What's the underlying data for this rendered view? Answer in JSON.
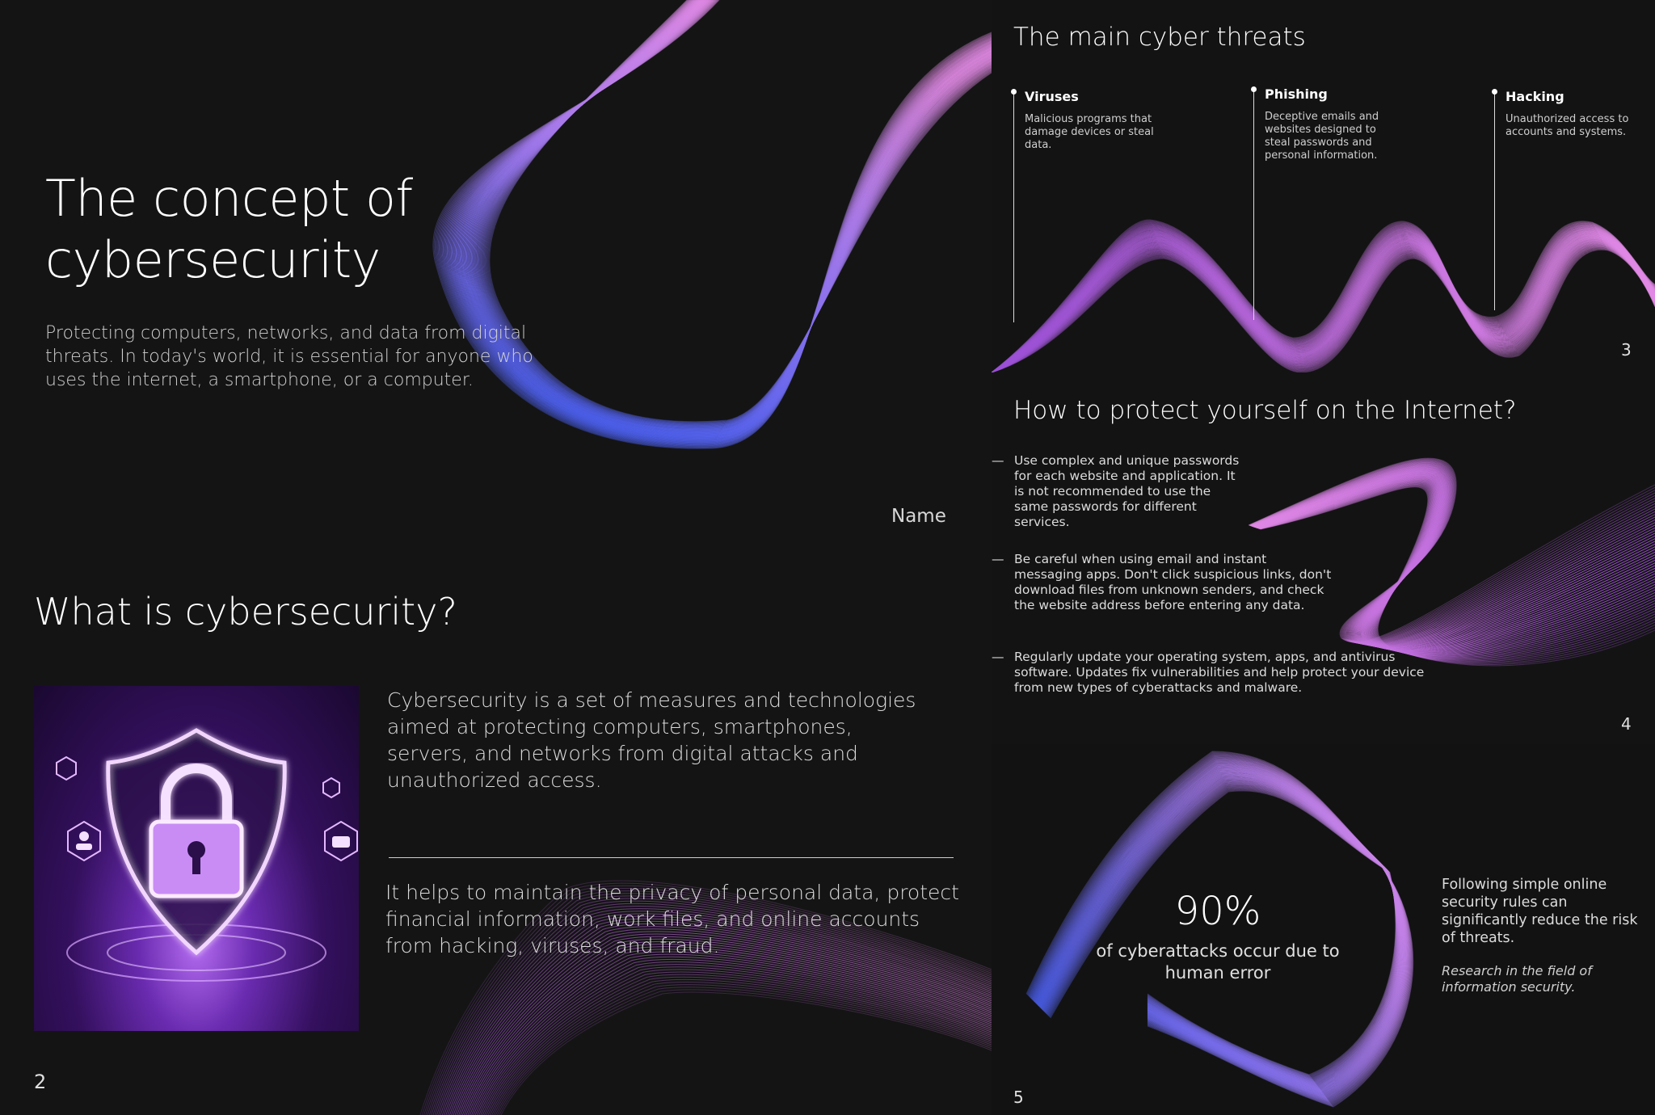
{
  "colors": {
    "background": "#141414",
    "wave_pink": "#e38ae6",
    "wave_purple": "#9a4fd6",
    "wave_blue": "#3f5cf0",
    "text": "#e6e6e6"
  },
  "slide1": {
    "title": "The concept of cybersecurity",
    "description": "Protecting computers, networks, and data from digital threats. In today's world, it is essential for anyone who uses the internet, a smartphone, or a computer.",
    "name": "Name"
  },
  "slide2": {
    "title": "What is cybersecurity?",
    "image_icon": "shield-lock-icon",
    "paragraph1": "Cybersecurity is a set of measures and technologies aimed at protecting computers, smartphones, servers, and networks from digital attacks and unauthorized access.",
    "paragraph2": "It helps to maintain the privacy of personal data, protect financial information, work files, and online accounts from hacking, viruses, and fraud.",
    "page": "2"
  },
  "slide3": {
    "title": "The main cyber threats",
    "threats": [
      {
        "title": "Viruses",
        "text": "Malicious programs that damage devices or steal data."
      },
      {
        "title": "Phishing",
        "text": "Deceptive emails and websites designed to steal passwords and personal information."
      },
      {
        "title": "Hacking",
        "text": "Unauthorized access to accounts and systems."
      }
    ],
    "page": "3"
  },
  "slide4": {
    "title": "How to protect yourself on the Internet?",
    "dash": "—",
    "tips": [
      "Use complex and unique passwords for each website and application. It is not recommended to use the same passwords for different services.",
      "Be careful when using email and instant messaging apps. Don't click suspicious links, don't download files from unknown senders, and check the website address before entering any data.",
      "Regularly update your operating system, apps, and antivirus software. Updates fix vulnerabilities and help protect your device from new types of cyberattacks and malware."
    ],
    "page": "4"
  },
  "slide5": {
    "stat": "90%",
    "stat_text": "of cyberattacks occur due to human error",
    "side_text": "Following simple online security rules can significantly reduce the risk of threats.",
    "source": "Research in the field of information security.",
    "page": "5"
  }
}
